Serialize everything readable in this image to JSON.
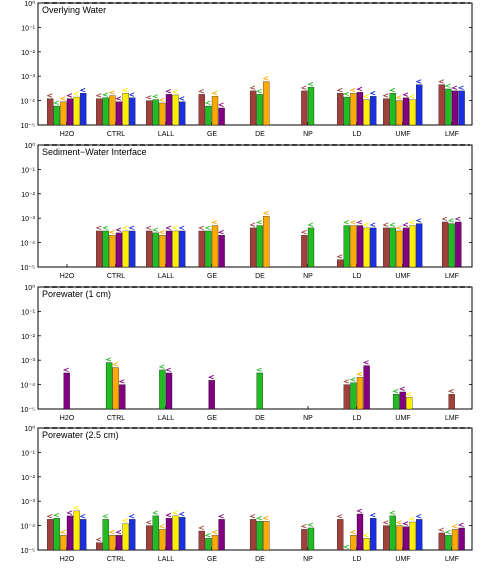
{
  "chart_data": [
    {
      "type": "bar",
      "title": "Overlying Water",
      "yscale": "log",
      "ylim": [
        1e-05,
        1
      ],
      "y_ticks": [
        "10⁰",
        "10⁻¹",
        "10⁻²",
        "10⁻³",
        "10⁻⁴",
        "10⁻⁵"
      ],
      "reference_line": 1,
      "categories": [
        "H2O",
        "CTRL",
        "LALL",
        "GE",
        "DE",
        "NP",
        "LD",
        "UMF",
        "LMF"
      ],
      "series": [
        {
          "color": "#a0403a",
          "values": [
            0.00012,
            0.00012,
            0.0001,
            0.00018,
            0.00025,
            0.00025,
            0.0002,
            0.00012,
            0.00045
          ]
        },
        {
          "color": "#22bb22",
          "values": [
            6e-05,
            0.00013,
            0.00011,
            6e-05,
            0.00018,
            0.00035,
            0.00014,
            0.0002,
            0.0003
          ]
        },
        {
          "color": "#ffaa00",
          "values": [
            9e-05,
            0.00016,
            8e-05,
            0.00015,
            0.0006,
            null,
            0.0002,
            0.0001,
            null
          ]
        },
        {
          "color": "#800080",
          "values": [
            0.00012,
            9e-05,
            0.00018,
            5e-05,
            null,
            null,
            0.00022,
            0.00013,
            0.00025
          ]
        },
        {
          "color": "#ffee00",
          "values": [
            0.00014,
            0.0002,
            0.00017,
            null,
            null,
            null,
            0.00011,
            0.00011,
            null
          ]
        },
        {
          "color": "#1a2fe0",
          "values": [
            0.0002,
            0.00013,
            9e-05,
            null,
            null,
            null,
            0.00015,
            0.00045,
            0.00025
          ]
        }
      ]
    },
    {
      "type": "bar",
      "title": "Sediment−Water Interface",
      "yscale": "log",
      "ylim": [
        1e-05,
        1
      ],
      "y_ticks": [
        "10⁰",
        "10⁻¹",
        "10⁻²",
        "10⁻³",
        "10⁻⁴",
        "10⁻⁵"
      ],
      "reference_line": 1,
      "categories": [
        "H2O",
        "CTRL",
        "LALL",
        "GE",
        "DE",
        "NP",
        "LD",
        "UMF",
        "LMF"
      ],
      "series": [
        {
          "color": "#a0403a",
          "values": [
            null,
            0.0003,
            0.0003,
            0.0003,
            0.0004,
            0.0002,
            2e-05,
            0.0004,
            0.0007
          ]
        },
        {
          "color": "#22bb22",
          "values": [
            null,
            0.0003,
            0.00025,
            0.0003,
            0.0005,
            0.0004,
            0.0005,
            0.0004,
            0.0006
          ]
        },
        {
          "color": "#ffaa00",
          "values": [
            null,
            0.0002,
            0.0002,
            0.0005,
            0.0012,
            null,
            0.0005,
            0.0003,
            null
          ]
        },
        {
          "color": "#800080",
          "values": [
            null,
            0.00025,
            0.0003,
            0.0002,
            null,
            null,
            0.0005,
            0.0004,
            0.0007
          ]
        },
        {
          "color": "#ffee00",
          "values": [
            null,
            0.0003,
            0.0003,
            null,
            null,
            null,
            0.0004,
            0.0005,
            null
          ]
        },
        {
          "color": "#1a2fe0",
          "values": [
            null,
            0.0003,
            0.0003,
            null,
            null,
            null,
            0.0004,
            0.0006,
            null
          ]
        }
      ]
    },
    {
      "type": "bar",
      "title": "Porewater (1 cm)",
      "yscale": "log",
      "ylim": [
        1e-05,
        1
      ],
      "y_ticks": [
        "10⁰",
        "10⁻¹",
        "10⁻²",
        "10⁻³",
        "10⁻⁴",
        "10⁻⁵"
      ],
      "reference_line": 1,
      "categories": [
        "H2O",
        "CTRL",
        "LALL",
        "GE",
        "DE",
        "NP",
        "LD",
        "UMF",
        "LMF"
      ],
      "series": [
        {
          "color": "#a0403a",
          "values": [
            null,
            null,
            null,
            null,
            null,
            null,
            0.0001,
            null,
            4e-05
          ]
        },
        {
          "color": "#22bb22",
          "values": [
            null,
            0.0008,
            0.0004,
            null,
            0.0003,
            null,
            0.00012,
            4e-05,
            null
          ]
        },
        {
          "color": "#ffaa00",
          "values": [
            null,
            0.0005,
            null,
            null,
            null,
            null,
            0.0002,
            null,
            null
          ]
        },
        {
          "color": "#800080",
          "values": [
            0.0003,
            0.0001,
            0.0003,
            0.00015,
            null,
            null,
            0.0006,
            5e-05,
            null
          ]
        },
        {
          "color": "#ffee00",
          "values": [
            null,
            null,
            null,
            null,
            null,
            null,
            null,
            3e-05,
            null
          ]
        },
        {
          "color": "#1a2fe0",
          "values": [
            null,
            null,
            null,
            null,
            null,
            null,
            null,
            null,
            null
          ]
        }
      ]
    },
    {
      "type": "bar",
      "title": "Porewater (2.5 cm)",
      "yscale": "log",
      "ylim": [
        1e-05,
        1
      ],
      "y_ticks": [
        "10⁰",
        "10⁻¹",
        "10⁻²",
        "10⁻³",
        "10⁻⁴",
        "10⁻⁵"
      ],
      "reference_line": 1,
      "categories": [
        "H2O",
        "CTRL",
        "LALL",
        "GE",
        "DE",
        "NP",
        "LD",
        "UMF",
        "LMF"
      ],
      "series": [
        {
          "color": "#a0403a",
          "values": [
            0.00018,
            2e-05,
            0.0001,
            6e-05,
            0.00018,
            7e-05,
            0.00018,
            0.0001,
            5e-05
          ]
        },
        {
          "color": "#22bb22",
          "values": [
            0.0002,
            0.00018,
            0.00025,
            3e-05,
            0.00015,
            8e-05,
            1e-05,
            0.00025,
            4e-05
          ]
        },
        {
          "color": "#ffaa00",
          "values": [
            4e-05,
            4e-05,
            7e-05,
            4e-05,
            0.00015,
            null,
            4e-05,
            0.0001,
            7e-05
          ]
        },
        {
          "color": "#800080",
          "values": [
            0.00025,
            4e-05,
            0.0002,
            0.00018,
            null,
            null,
            0.0003,
            9e-05,
            8e-05
          ]
        },
        {
          "color": "#ffee00",
          "values": [
            0.0004,
            0.00012,
            0.00025,
            null,
            null,
            null,
            3e-05,
            0.00014,
            null
          ]
        },
        {
          "color": "#1a2fe0",
          "values": [
            0.00018,
            0.00018,
            0.00022,
            null,
            null,
            null,
            0.0002,
            0.00018,
            null
          ]
        }
      ]
    }
  ]
}
